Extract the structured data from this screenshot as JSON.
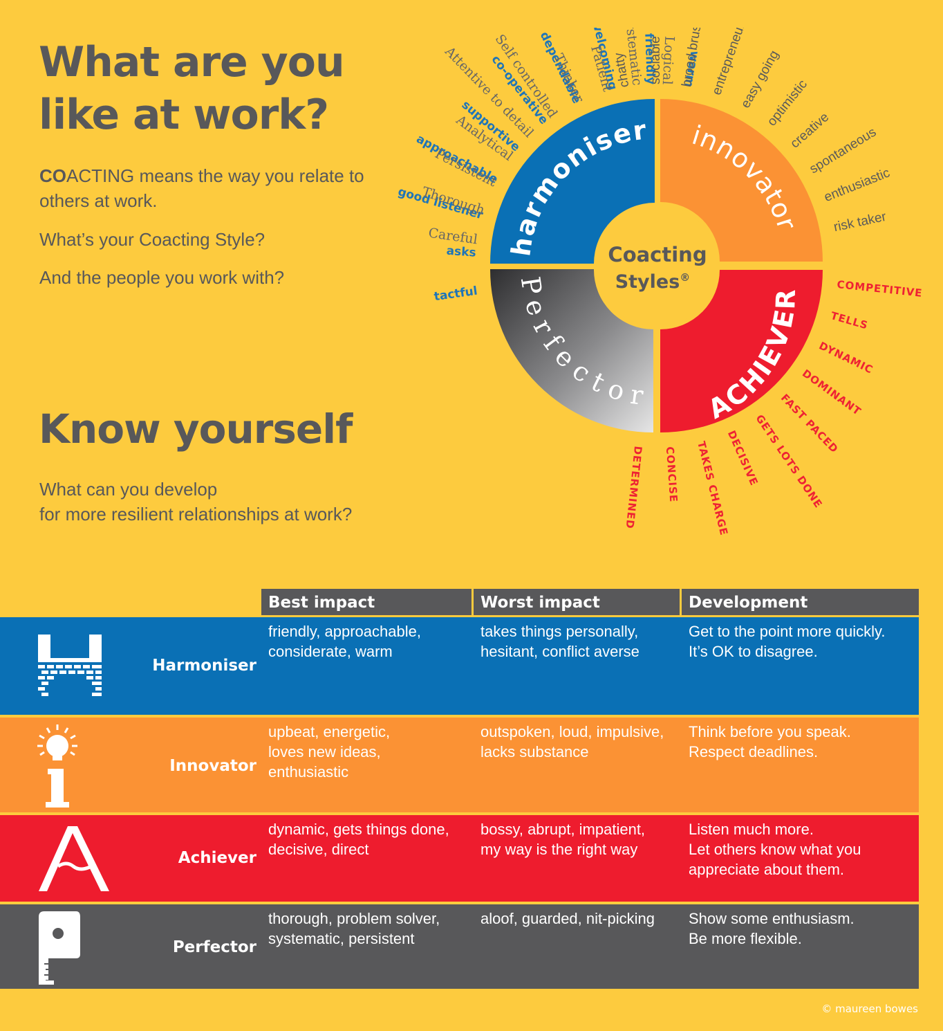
{
  "header": {
    "title_line1": "What are you",
    "title_line2": "like at work?",
    "intro_bold": "CO",
    "intro_rest": "ACTING means the way you relate to others at work.",
    "q1": "What’s your Coacting Style?",
    "q2": "And the people you work with?",
    "know_title": "Know yourself",
    "develop_line1": "What can you develop",
    "develop_line2": "for more resilient relationships at work?"
  },
  "wheel": {
    "center_line1": "Coacting",
    "center_line2": "Styles",
    "center_mark": "®",
    "quadrants": {
      "harmoniser": "harmoniser",
      "innovator": "innovator",
      "achiever": "ACHIEVER",
      "perfector": "Perfector"
    },
    "colors": {
      "harmoniser": "#0a70b5",
      "innovator": "#fb9234",
      "achiever": "#ee1c2e",
      "perfector": "#58585a"
    },
    "harmoniser_words": [
      "tactful",
      "asks",
      "good listener",
      "approachable",
      "supportive",
      "co-operative",
      "dependable",
      "welcoming",
      "friendly",
      "warm"
    ],
    "innovator_words": [
      "chatty",
      "sociable",
      "broad brush",
      "entrepreneurial",
      "easy going",
      "optimistic",
      "creative",
      "spontaneous",
      "enthusiastic",
      "risk taker"
    ],
    "achiever_words": [
      "COMPETITIVE",
      "TELLS",
      "DYNAMIC",
      "DOMINANT",
      "FAST PACED",
      "GETS LOTS DONE",
      "DECISIVE",
      "TAKES CHARGE",
      "CONCISE",
      "DETERMINED"
    ],
    "perfector_words": [
      "Careful",
      "Thorough",
      "Persistent",
      "Analytical",
      "Attentive to detail",
      "Self controlled",
      "Thinker",
      "Patient",
      "Systematic",
      "Logical"
    ]
  },
  "table": {
    "headers": [
      "Best impact",
      "Worst impact",
      "Development"
    ],
    "rows": [
      {
        "label": "Harmoniser",
        "icon": "castle-h-icon",
        "color": "#0a70b5",
        "best": [
          "friendly, approachable,",
          "considerate, warm"
        ],
        "worst": [
          "takes things personally,",
          "hesitant, conflict averse"
        ],
        "dev": [
          "Get to the point more quickly.",
          "It’s OK to disagree."
        ]
      },
      {
        "label": "Innovator",
        "icon": "lightbulb-i-icon",
        "color": "#fb9234",
        "best": [
          "upbeat, energetic,",
          "loves new ideas,",
          "enthusiastic"
        ],
        "worst": [
          "outspoken, loud, impulsive,",
          "lacks substance"
        ],
        "dev": [
          "Think before you speak.",
          "Respect deadlines."
        ]
      },
      {
        "label": "Achiever",
        "icon": "mountain-a-icon",
        "color": "#ee1c2e",
        "best": [
          "dynamic, gets things done,",
          "decisive, direct"
        ],
        "worst": [
          "bossy, abrupt, impatient,",
          "my way is the right way"
        ],
        "dev": [
          "Listen much more.",
          "Let others know what you",
          "appreciate about them."
        ]
      },
      {
        "label": "Perfector",
        "icon": "tape-measure-p-icon",
        "color": "#58585a",
        "best": [
          "thorough, problem solver,",
          "systematic, persistent"
        ],
        "worst": [
          "aloof, guarded, nit-picking"
        ],
        "dev": [
          "Show some enthusiasm.",
          "Be more flexible."
        ]
      }
    ]
  },
  "footer": {
    "copyright": "© maureen bowes"
  }
}
